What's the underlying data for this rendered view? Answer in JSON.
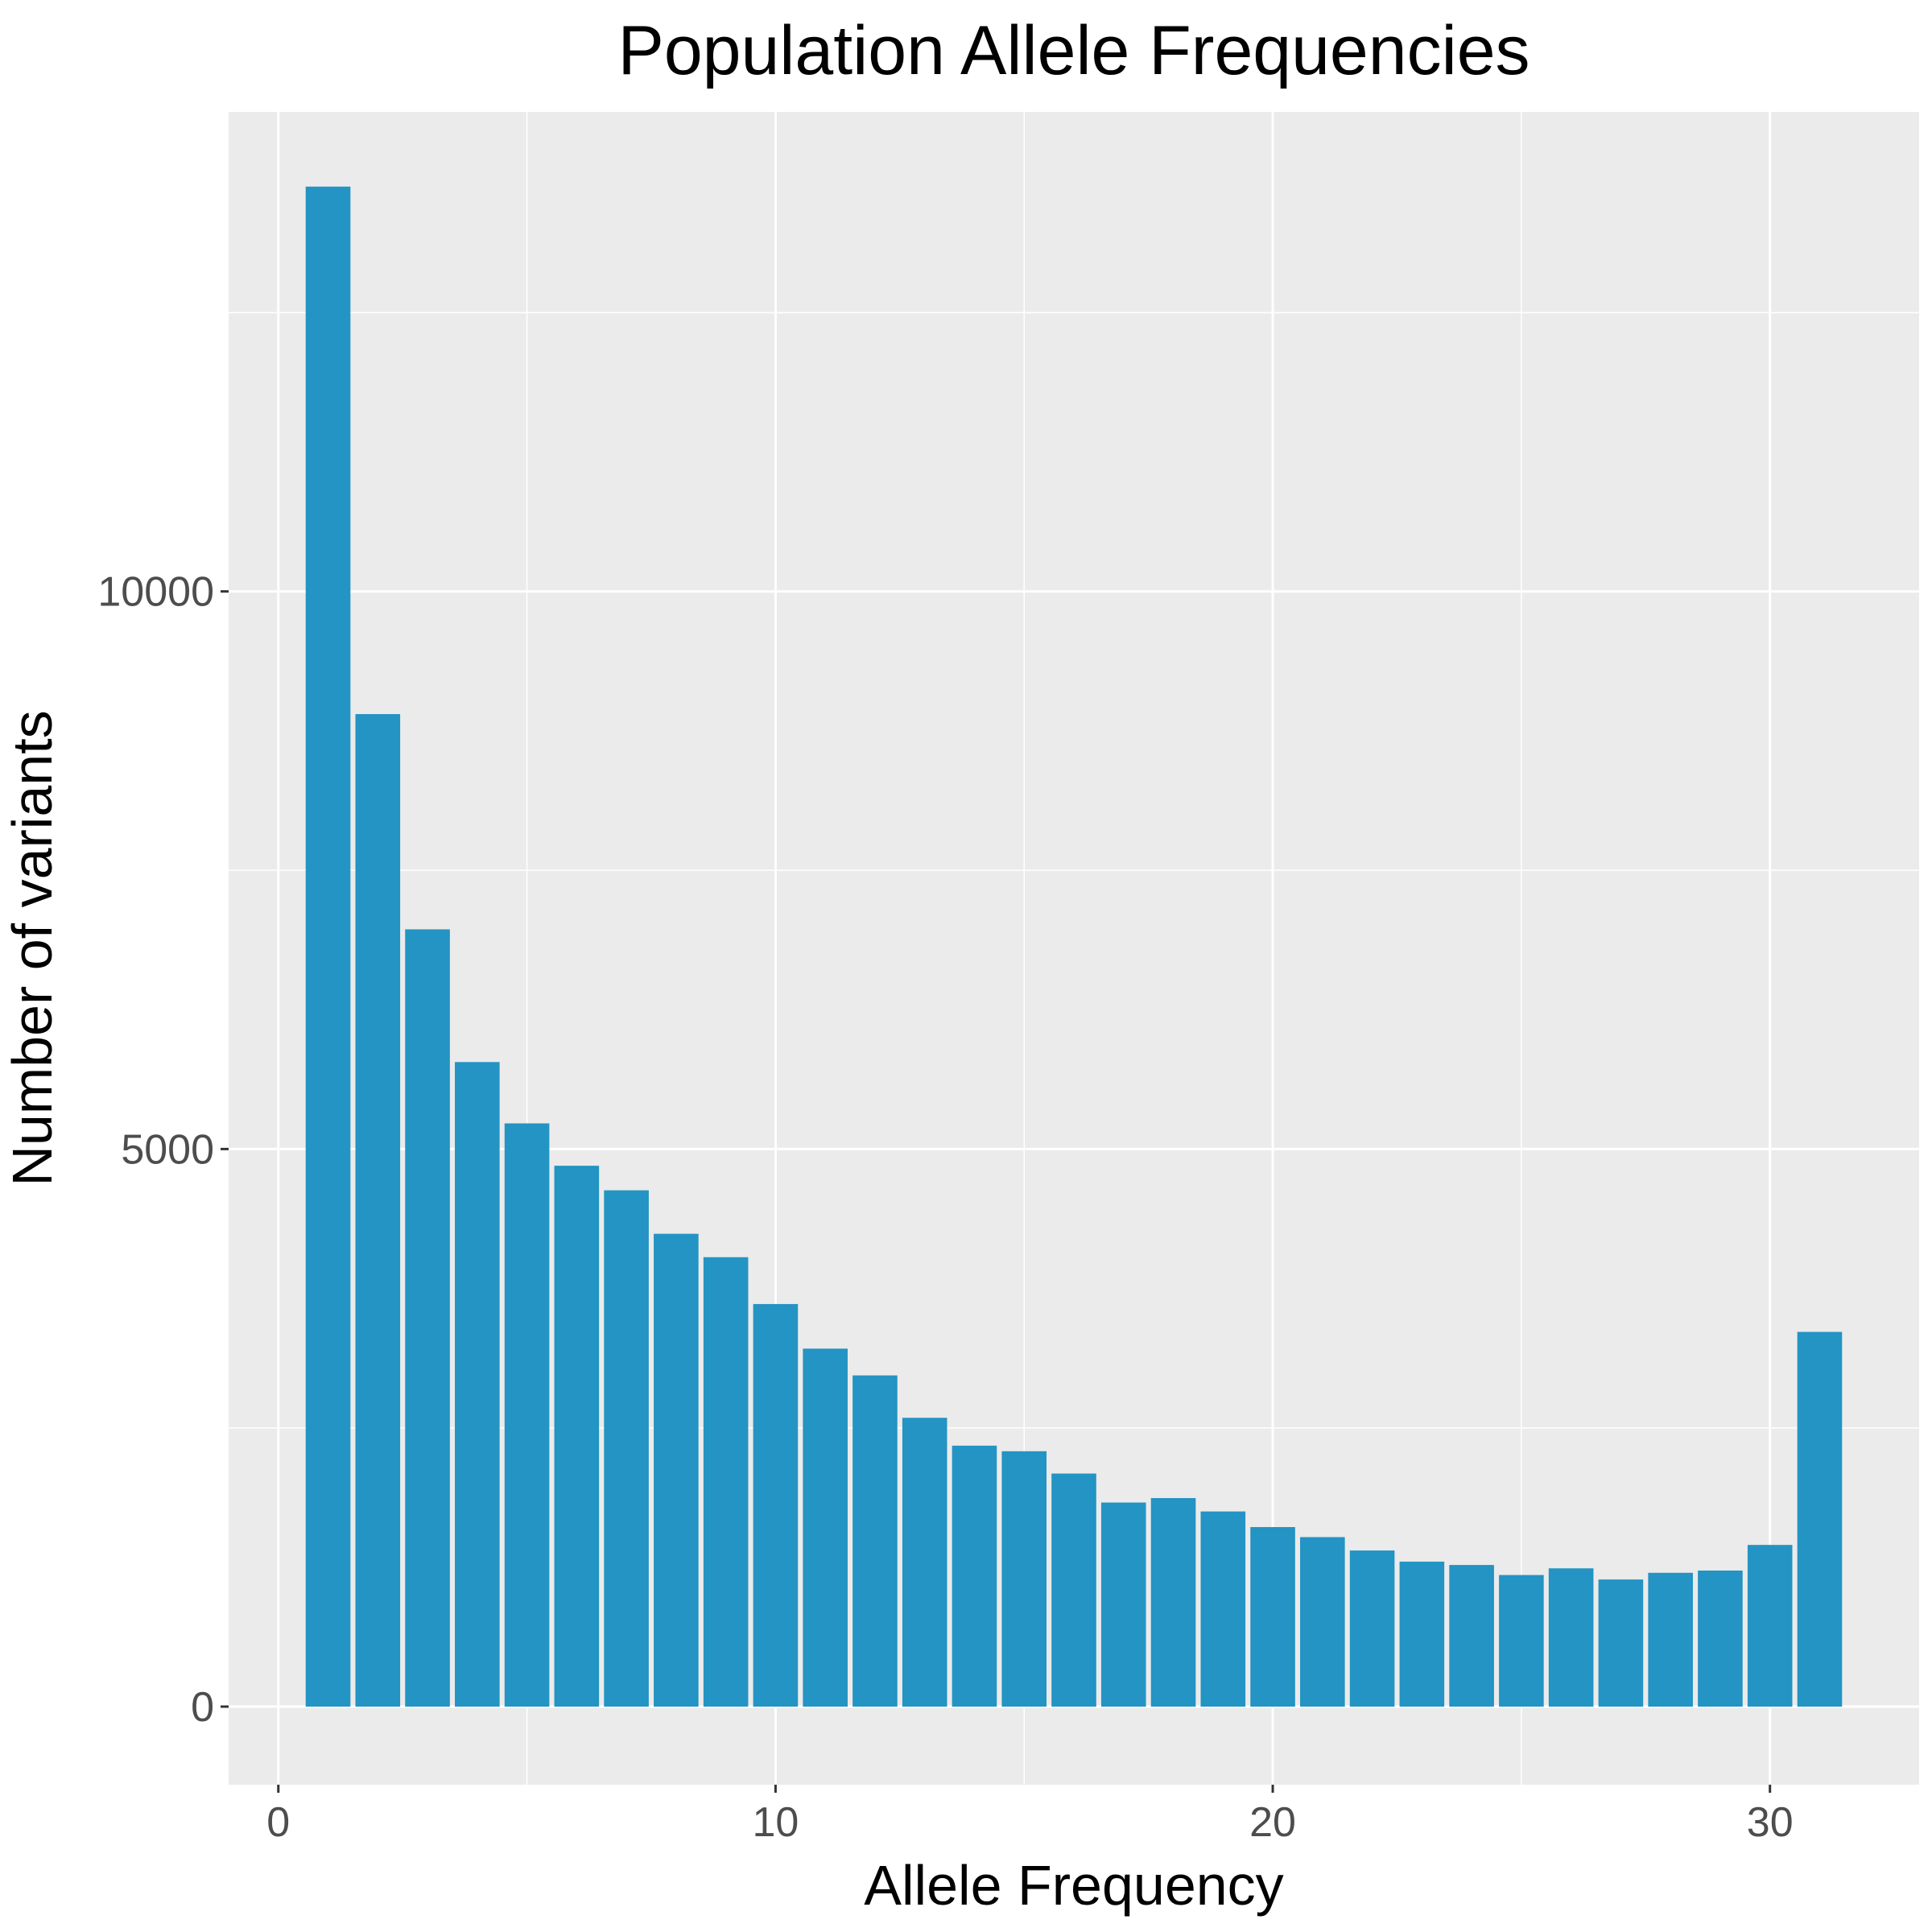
{
  "chart_data": {
    "type": "bar",
    "title": "Population Allele Frequencies",
    "xlabel": "Allele Frequency",
    "ylabel": "Number of variants",
    "xlim": [
      -1,
      33
    ],
    "ylim": [
      -700,
      14300
    ],
    "x_ticks": [
      0,
      10,
      20,
      30
    ],
    "y_ticks": [
      0,
      5000,
      10000
    ],
    "grid": true,
    "legend": "none",
    "bar_color": "#2394C3",
    "panel_color": "#EBEBEB",
    "x": [
      1,
      2,
      3,
      4,
      5,
      6,
      7,
      8,
      9,
      10,
      11,
      12,
      13,
      14,
      15,
      16,
      17,
      18,
      19,
      20,
      21,
      22,
      23,
      24,
      25,
      26,
      27,
      28,
      29,
      30,
      31
    ],
    "values": [
      13630,
      8900,
      6970,
      5780,
      5230,
      4850,
      4630,
      4240,
      4030,
      3610,
      3210,
      2970,
      2590,
      2340,
      2290,
      2090,
      1830,
      1870,
      1750,
      1610,
      1520,
      1400,
      1300,
      1270,
      1180,
      1240,
      1140,
      1200,
      1220,
      1450,
      3360
    ]
  }
}
